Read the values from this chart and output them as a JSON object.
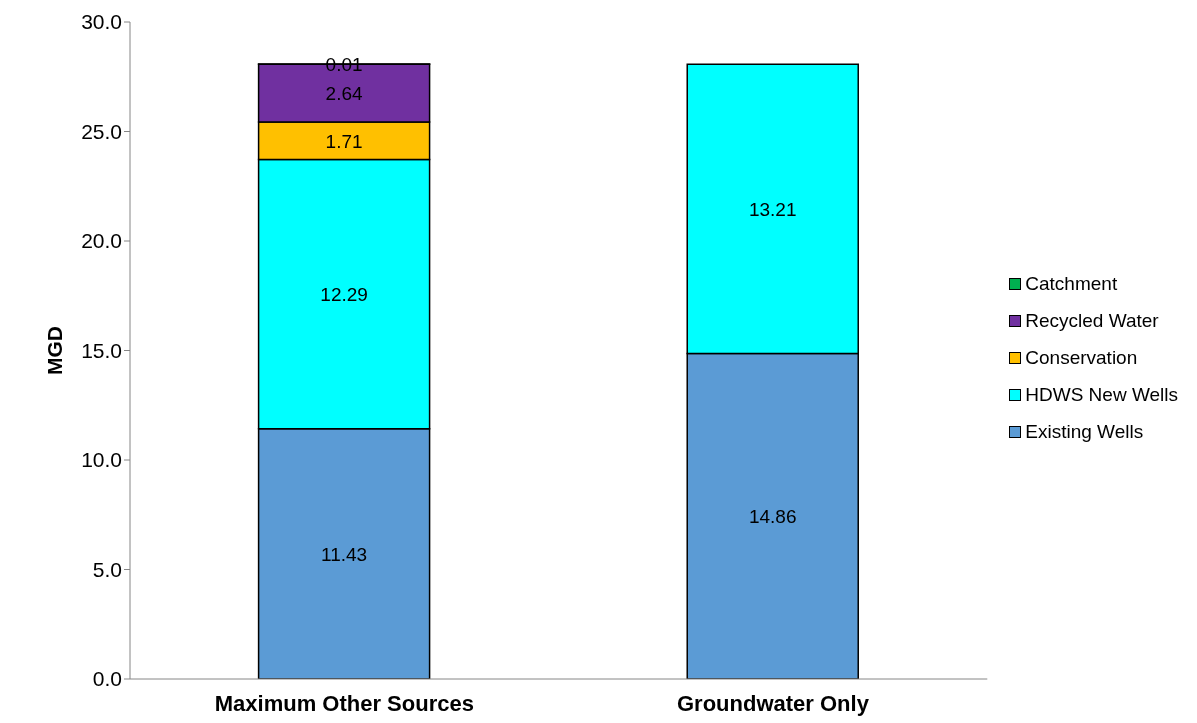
{
  "chart_data": {
    "type": "bar",
    "stacked": true,
    "ylabel": "MGD",
    "categories": [
      "Maximum Other Sources",
      "Groundwater Only"
    ],
    "series": [
      {
        "name": "Existing Wells",
        "color": "#5b9bd5",
        "values": [
          11.43,
          14.86
        ]
      },
      {
        "name": "HDWS New Wells",
        "color": "#00ffff",
        "values": [
          12.29,
          13.21
        ]
      },
      {
        "name": "Conservation",
        "color": "#ffc000",
        "values": [
          1.71,
          null
        ]
      },
      {
        "name": "Recycled Water",
        "color": "#7030a0",
        "values": [
          2.64,
          null
        ]
      },
      {
        "name": "Catchment",
        "color": "#00b050",
        "values": [
          0.01,
          null
        ]
      }
    ],
    "ylim": [
      0,
      30
    ],
    "yticks": [
      {
        "value": 0,
        "label": "0.0"
      },
      {
        "value": 5,
        "label": "5.0"
      },
      {
        "value": 10,
        "label": "10.0"
      },
      {
        "value": 15,
        "label": "15.0"
      },
      {
        "value": 20,
        "label": "20.0"
      },
      {
        "value": 25,
        "label": "25.0"
      },
      {
        "value": 30,
        "label": "30.0"
      }
    ],
    "data_labels": true,
    "legend": "right",
    "grid": false
  }
}
